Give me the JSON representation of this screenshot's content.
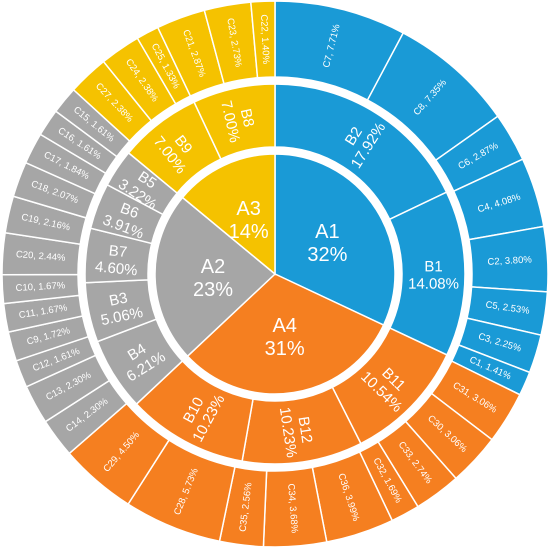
{
  "chart_data": {
    "type": "sunburst",
    "colors": {
      "A1": "#1a9ad6",
      "A2": "#a6a6a6",
      "A3": "#f5c200",
      "A4": "#f57f20"
    },
    "label_format": "{name}, {value}",
    "levels": [
      {
        "name": "A",
        "nodes": [
          {
            "name": "A1",
            "label": "32%",
            "value": 32,
            "group": "A1"
          },
          {
            "name": "A4",
            "label": "31%",
            "value": 31,
            "group": "A4"
          },
          {
            "name": "A2",
            "label": "23%",
            "value": 23,
            "group": "A2"
          },
          {
            "name": "A3",
            "label": "14%",
            "value": 14,
            "group": "A3"
          }
        ]
      },
      {
        "name": "B",
        "nodes": [
          {
            "name": "B2",
            "label": "17.92%",
            "value": 17.92,
            "group": "A1"
          },
          {
            "name": "B1",
            "label": "14.08%",
            "value": 14.08,
            "group": "A1"
          },
          {
            "name": "B11",
            "label": "10.54%",
            "value": 10.54,
            "group": "A4"
          },
          {
            "name": "B12",
            "label": "10.23%",
            "value": 10.23,
            "group": "A4"
          },
          {
            "name": "B10",
            "label": "10.23%",
            "value": 10.23,
            "group": "A4"
          },
          {
            "name": "B4",
            "label": "6.21%",
            "value": 6.21,
            "group": "A2"
          },
          {
            "name": "B3",
            "label": "5.06%",
            "value": 5.06,
            "group": "A2"
          },
          {
            "name": "B7",
            "label": "4.60%",
            "value": 4.6,
            "group": "A2"
          },
          {
            "name": "B6",
            "label": "3.91%",
            "value": 3.91,
            "group": "A2"
          },
          {
            "name": "B5",
            "label": "3.22%",
            "value": 3.22,
            "group": "A2"
          },
          {
            "name": "B9",
            "label": "7.00%",
            "value": 7.0,
            "group": "A3"
          },
          {
            "name": "B8",
            "label": "7.00%",
            "value": 7.0,
            "group": "A3"
          }
        ]
      },
      {
        "name": "C",
        "nodes": [
          {
            "name": "C7",
            "label": "7.71%",
            "value": 7.71,
            "group": "A1"
          },
          {
            "name": "C8",
            "label": "7.35%",
            "value": 7.35,
            "group": "A1"
          },
          {
            "name": "C6",
            "label": "2.87%",
            "value": 2.87,
            "group": "A1"
          },
          {
            "name": "C4",
            "label": "4.08%",
            "value": 4.08,
            "group": "A1"
          },
          {
            "name": "C2",
            "label": "3.80%",
            "value": 3.8,
            "group": "A1"
          },
          {
            "name": "C5",
            "label": "2.53%",
            "value": 2.53,
            "group": "A1"
          },
          {
            "name": "C3",
            "label": "2.25%",
            "value": 2.25,
            "group": "A1"
          },
          {
            "name": "C1",
            "label": "1.41%",
            "value": 1.41,
            "group": "A1"
          },
          {
            "name": "C31",
            "label": "3.06%",
            "value": 3.06,
            "group": "A4"
          },
          {
            "name": "C30",
            "label": "3.06%",
            "value": 3.06,
            "group": "A4"
          },
          {
            "name": "C33",
            "label": "2.74%",
            "value": 2.74,
            "group": "A4"
          },
          {
            "name": "C32",
            "label": "1.69%",
            "value": 1.69,
            "group": "A4"
          },
          {
            "name": "C36",
            "label": "3.99%",
            "value": 3.99,
            "group": "A4"
          },
          {
            "name": "C34",
            "label": "3.68%",
            "value": 3.68,
            "group": "A4"
          },
          {
            "name": "C35",
            "label": "2.56%",
            "value": 2.56,
            "group": "A4"
          },
          {
            "name": "C28",
            "label": "5.73%",
            "value": 5.73,
            "group": "A4"
          },
          {
            "name": "C29",
            "label": "4.50%",
            "value": 4.5,
            "group": "A4"
          },
          {
            "name": "C14",
            "label": "2.30%",
            "value": 2.3,
            "group": "A2"
          },
          {
            "name": "C13",
            "label": "2.30%",
            "value": 2.3,
            "group": "A2"
          },
          {
            "name": "C12",
            "label": "1.61%",
            "value": 1.61,
            "group": "A2"
          },
          {
            "name": "C9",
            "label": "1.72%",
            "value": 1.72,
            "group": "A2"
          },
          {
            "name": "C11",
            "label": "1.67%",
            "value": 1.67,
            "group": "A2"
          },
          {
            "name": "C10",
            "label": "1.67%",
            "value": 1.67,
            "group": "A2"
          },
          {
            "name": "C20",
            "label": "2.44%",
            "value": 2.44,
            "group": "A2"
          },
          {
            "name": "C19",
            "label": "2.16%",
            "value": 2.16,
            "group": "A2"
          },
          {
            "name": "C18",
            "label": "2.07%",
            "value": 2.07,
            "group": "A2"
          },
          {
            "name": "C17",
            "label": "1.84%",
            "value": 1.84,
            "group": "A2"
          },
          {
            "name": "C16",
            "label": "1.61%",
            "value": 1.61,
            "group": "A2"
          },
          {
            "name": "C15",
            "label": "1.61%",
            "value": 1.61,
            "group": "A2"
          },
          {
            "name": "C27",
            "label": "2.38%",
            "value": 2.38,
            "group": "A3"
          },
          {
            "name": "C24",
            "label": "2.38%",
            "value": 2.38,
            "group": "A3"
          },
          {
            "name": "C25",
            "label": "1.33%",
            "value": 1.33,
            "group": "A3"
          },
          {
            "name": "C21",
            "label": "2.87%",
            "value": 2.87,
            "group": "A3"
          },
          {
            "name": "C23",
            "label": "2.73%",
            "value": 2.73,
            "group": "A3"
          },
          {
            "name": "C22",
            "label": "1.40%",
            "value": 1.4,
            "group": "A3"
          }
        ]
      }
    ]
  }
}
